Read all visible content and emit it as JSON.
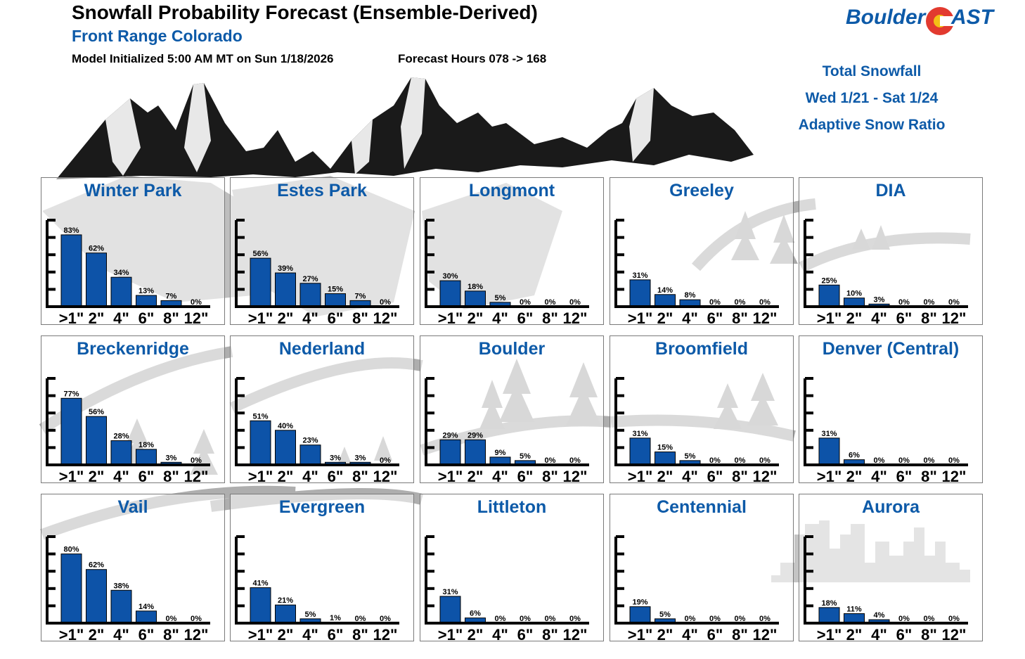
{
  "header": {
    "title": "Snowfall Probability Forecast (Ensemble-Derived)",
    "subtitle": "Front Range Colorado",
    "init": "Model Initialized 5:00 AM MT on Sun 1/18/2026",
    "hours": "Forecast Hours 078 -> 168"
  },
  "logo": {
    "part1": "Boulder",
    "part2": "AST"
  },
  "info": {
    "line1": "Total Snowfall",
    "line2": "Wed 1/21 - Sat 1/24",
    "line3": "Adaptive Snow Ratio"
  },
  "colors": {
    "bar": "#0d53a8",
    "title": "#0d5aa8"
  },
  "chart_data": [
    {
      "type": "bar",
      "title": "Winter Park",
      "categories": [
        ">1\"",
        "2\"",
        "4\"",
        "6\"",
        "8\"",
        "12\""
      ],
      "values": [
        83,
        62,
        34,
        13,
        7,
        0
      ],
      "labels": [
        "83%",
        "62%",
        "34%",
        "13%",
        "7%",
        "0%"
      ],
      "ylim": [
        0,
        100
      ]
    },
    {
      "type": "bar",
      "title": "Estes Park",
      "categories": [
        ">1\"",
        "2\"",
        "4\"",
        "6\"",
        "8\"",
        "12\""
      ],
      "values": [
        56,
        39,
        27,
        15,
        7,
        0
      ],
      "labels": [
        "56%",
        "39%",
        "27%",
        "15%",
        "7%",
        "0%"
      ],
      "ylim": [
        0,
        100
      ]
    },
    {
      "type": "bar",
      "title": "Longmont",
      "categories": [
        ">1\"",
        "2\"",
        "4\"",
        "6\"",
        "8\"",
        "12\""
      ],
      "values": [
        30,
        18,
        5,
        0,
        0,
        0
      ],
      "labels": [
        "30%",
        "18%",
        "5%",
        "0%",
        "0%",
        "0%"
      ],
      "ylim": [
        0,
        100
      ]
    },
    {
      "type": "bar",
      "title": "Greeley",
      "categories": [
        ">1\"",
        "2\"",
        "4\"",
        "6\"",
        "8\"",
        "12\""
      ],
      "values": [
        31,
        14,
        8,
        0,
        0,
        0
      ],
      "labels": [
        "31%",
        "14%",
        "8%",
        "0%",
        "0%",
        "0%"
      ],
      "ylim": [
        0,
        100
      ]
    },
    {
      "type": "bar",
      "title": "DIA",
      "categories": [
        ">1\"",
        "2\"",
        "4\"",
        "6\"",
        "8\"",
        "12\""
      ],
      "values": [
        25,
        10,
        3,
        0,
        0,
        0
      ],
      "labels": [
        "25%",
        "10%",
        "3%",
        "0%",
        "0%",
        "0%"
      ],
      "ylim": [
        0,
        100
      ]
    },
    {
      "type": "bar",
      "title": "Breckenridge",
      "categories": [
        ">1\"",
        "2\"",
        "4\"",
        "6\"",
        "8\"",
        "12\""
      ],
      "values": [
        77,
        56,
        28,
        18,
        3,
        0
      ],
      "labels": [
        "77%",
        "56%",
        "28%",
        "18%",
        "3%",
        "0%"
      ],
      "ylim": [
        0,
        100
      ]
    },
    {
      "type": "bar",
      "title": "Nederland",
      "categories": [
        ">1\"",
        "2\"",
        "4\"",
        "6\"",
        "8\"",
        "12\""
      ],
      "values": [
        51,
        40,
        23,
        3,
        3,
        0
      ],
      "labels": [
        "51%",
        "40%",
        "23%",
        "3%",
        "3%",
        "0%"
      ],
      "ylim": [
        0,
        100
      ]
    },
    {
      "type": "bar",
      "title": "Boulder",
      "categories": [
        ">1\"",
        "2\"",
        "4\"",
        "6\"",
        "8\"",
        "12\""
      ],
      "values": [
        29,
        29,
        9,
        5,
        0,
        0
      ],
      "labels": [
        "29%",
        "29%",
        "9%",
        "5%",
        "0%",
        "0%"
      ],
      "ylim": [
        0,
        100
      ]
    },
    {
      "type": "bar",
      "title": "Broomfield",
      "categories": [
        ">1\"",
        "2\"",
        "4\"",
        "6\"",
        "8\"",
        "12\""
      ],
      "values": [
        31,
        15,
        5,
        0,
        0,
        0
      ],
      "labels": [
        "31%",
        "15%",
        "5%",
        "0%",
        "0%",
        "0%"
      ],
      "ylim": [
        0,
        100
      ]
    },
    {
      "type": "bar",
      "title": "Denver (Central)",
      "categories": [
        ">1\"",
        "2\"",
        "4\"",
        "6\"",
        "8\"",
        "12\""
      ],
      "values": [
        31,
        6,
        0,
        0,
        0,
        0
      ],
      "labels": [
        "31%",
        "6%",
        "0%",
        "0%",
        "0%",
        "0%"
      ],
      "ylim": [
        0,
        100
      ]
    },
    {
      "type": "bar",
      "title": "Vail",
      "categories": [
        ">1\"",
        "2\"",
        "4\"",
        "6\"",
        "8\"",
        "12\""
      ],
      "values": [
        80,
        62,
        38,
        14,
        0,
        0
      ],
      "labels": [
        "80%",
        "62%",
        "38%",
        "14%",
        "0%",
        "0%"
      ],
      "ylim": [
        0,
        100
      ]
    },
    {
      "type": "bar",
      "title": "Evergreen",
      "categories": [
        ">1\"",
        "2\"",
        "4\"",
        "6\"",
        "8\"",
        "12\""
      ],
      "values": [
        41,
        21,
        5,
        1,
        0,
        0
      ],
      "labels": [
        "41%",
        "21%",
        "5%",
        "1%",
        "0%",
        "0%"
      ],
      "ylim": [
        0,
        100
      ]
    },
    {
      "type": "bar",
      "title": "Littleton",
      "categories": [
        ">1\"",
        "2\"",
        "4\"",
        "6\"",
        "8\"",
        "12\""
      ],
      "values": [
        31,
        6,
        0,
        0,
        0,
        0
      ],
      "labels": [
        "31%",
        "6%",
        "0%",
        "0%",
        "0%",
        "0%"
      ],
      "ylim": [
        0,
        100
      ]
    },
    {
      "type": "bar",
      "title": "Centennial",
      "categories": [
        ">1\"",
        "2\"",
        "4\"",
        "6\"",
        "8\"",
        "12\""
      ],
      "values": [
        19,
        5,
        0,
        0,
        0,
        0
      ],
      "labels": [
        "19%",
        "5%",
        "0%",
        "0%",
        "0%",
        "0%"
      ],
      "ylim": [
        0,
        100
      ]
    },
    {
      "type": "bar",
      "title": "Aurora",
      "categories": [
        ">1\"",
        "2\"",
        "4\"",
        "6\"",
        "8\"",
        "12\""
      ],
      "values": [
        18,
        11,
        4,
        0,
        0,
        0
      ],
      "labels": [
        "18%",
        "11%",
        "4%",
        "0%",
        "0%",
        "0%"
      ],
      "ylim": [
        0,
        100
      ]
    }
  ]
}
